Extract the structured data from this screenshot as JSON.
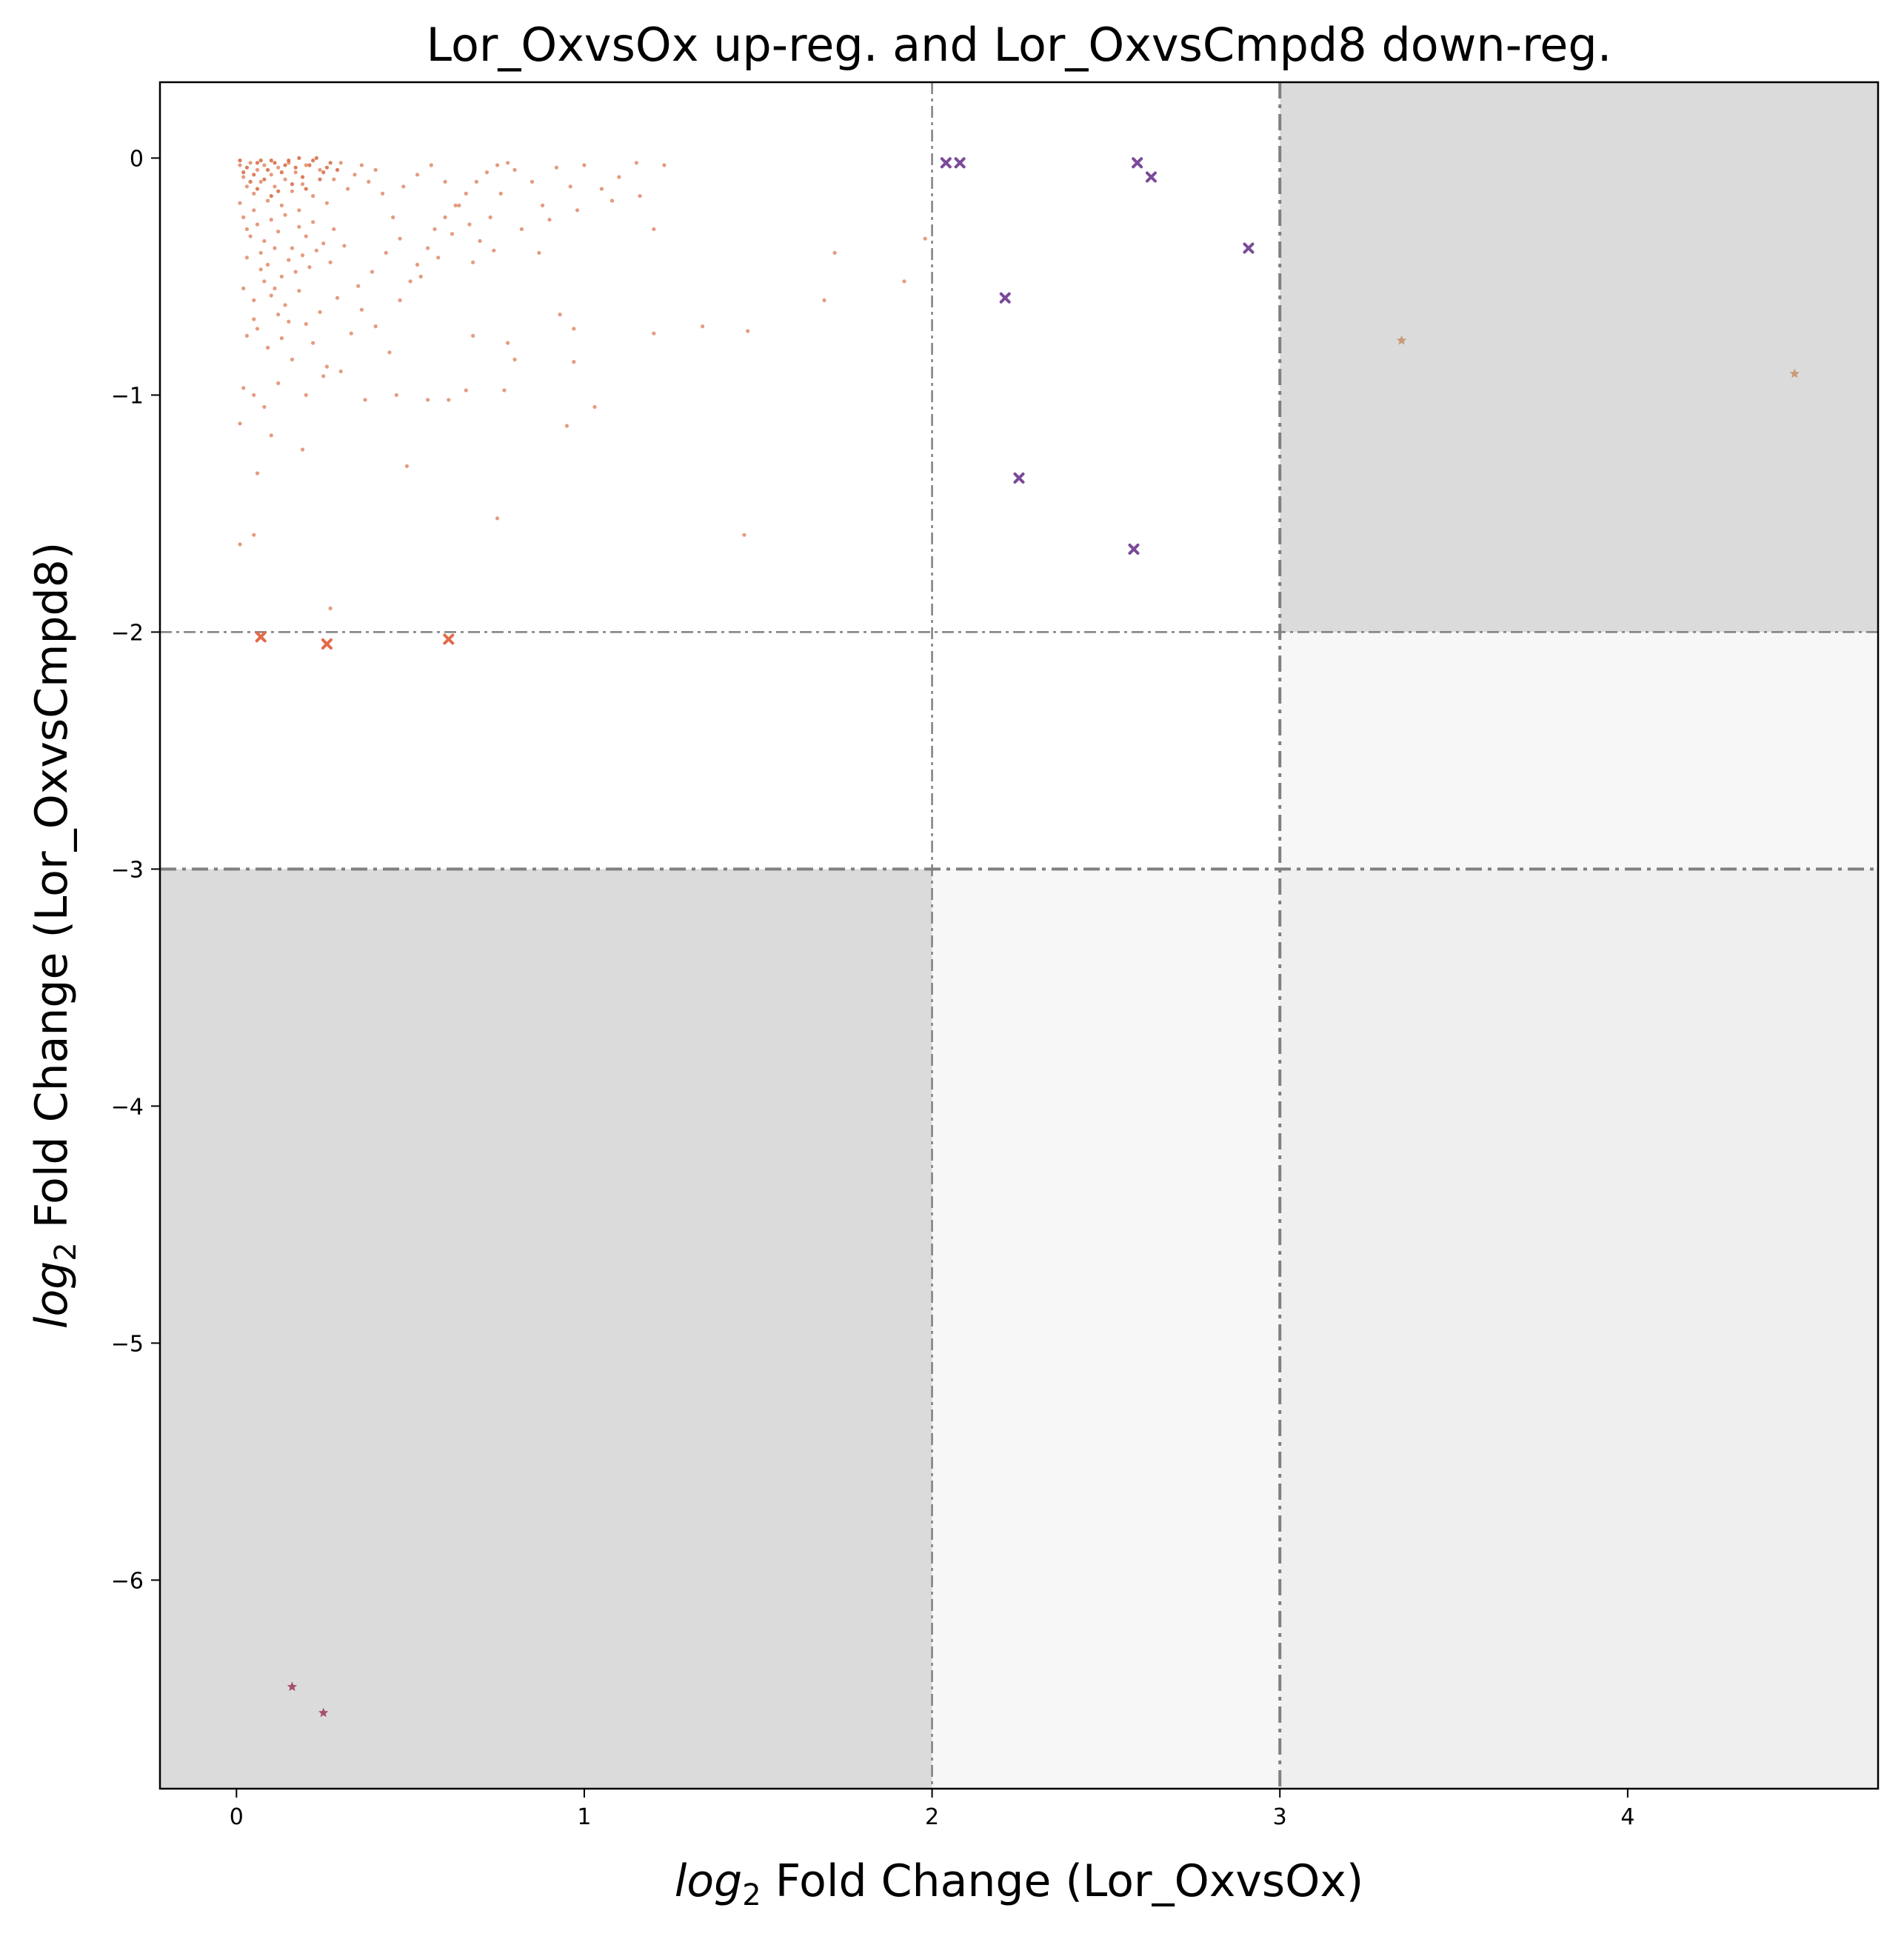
{
  "chart_data": {
    "type": "scatter",
    "title": "Lor_OxvsOx up-reg. and Lor_OxvsCmpd8 down-reg.",
    "xlabel": {
      "prefix": "log",
      "sub": "2",
      "rest": " Fold Change (Lor_OxvsOx)"
    },
    "ylabel": {
      "prefix": "log",
      "sub": "2",
      "rest": " Fold Change (Lor_OxvsCmpd8)"
    },
    "xlim": [
      -0.22,
      4.72
    ],
    "ylim": [
      -6.88,
      0.32
    ],
    "xticks": [
      0,
      1,
      2,
      3,
      4
    ],
    "yticks": [
      0,
      -1,
      -2,
      -3,
      -4,
      -5,
      -6
    ],
    "xtick_labels": [
      "0",
      "1",
      "2",
      "3",
      "4"
    ],
    "ytick_labels": [
      "0",
      "−1",
      "−2",
      "−3",
      "−4",
      "−5",
      "−6"
    ],
    "grid": false,
    "legend": "none",
    "colors": {
      "shade_dark": "#dbdbdb",
      "shade_light": "#f7f7f7",
      "shade_mid": "#efefef",
      "threshold_line": "#808080",
      "dots": "#e08a68",
      "dots_dense": "#d4683f",
      "cross_orange": "#e36a4a",
      "cross_purple": "#7a4a9a",
      "star_tan": "#c89a78",
      "star_rose": "#a8506a"
    },
    "regions": [
      {
        "x": [
          -0.22,
          2
        ],
        "y": [
          -6.88,
          -3
        ],
        "shade": "shade_dark"
      },
      {
        "x": [
          2,
          3
        ],
        "y": [
          -6.88,
          -3
        ],
        "shade": "shade_light"
      },
      {
        "x": [
          3,
          4.72
        ],
        "y": [
          -6.88,
          -3
        ],
        "shade": "shade_mid"
      },
      {
        "x": [
          3,
          4.72
        ],
        "y": [
          -3,
          -2
        ],
        "shade": "shade_light"
      },
      {
        "x": [
          3,
          4.72
        ],
        "y": [
          -2,
          0.32
        ],
        "shade": "shade_dark"
      }
    ],
    "thresholds": {
      "vertical": [
        {
          "x": 2,
          "weight": "thin"
        },
        {
          "x": 3,
          "weight": "thick"
        }
      ],
      "horizontal": [
        {
          "y": -2,
          "weight": "thin"
        },
        {
          "y": -3,
          "weight": "thick"
        }
      ]
    },
    "series": [
      {
        "marker": "dot",
        "color": "dots",
        "points": [
          [
            0.01,
            -0.03
          ],
          [
            0.02,
            -0.08
          ],
          [
            0.03,
            -0.12
          ],
          [
            0.04,
            -0.02
          ],
          [
            0.05,
            -0.15
          ],
          [
            0.06,
            -0.05
          ],
          [
            0.07,
            -0.1
          ],
          [
            0.08,
            -0.03
          ],
          [
            0.09,
            -0.18
          ],
          [
            0.1,
            -0.07
          ],
          [
            0.11,
            -0.12
          ],
          [
            0.12,
            -0.04
          ],
          [
            0.13,
            -0.2
          ],
          [
            0.14,
            -0.09
          ],
          [
            0.15,
            -0.02
          ],
          [
            0.16,
            -0.14
          ],
          [
            0.17,
            -0.06
          ],
          [
            0.18,
            -0.22
          ],
          [
            0.19,
            -0.11
          ],
          [
            0.2,
            -0.03
          ],
          [
            0.22,
            -0.16
          ],
          [
            0.24,
            -0.05
          ],
          [
            0.26,
            -0.19
          ],
          [
            0.28,
            -0.09
          ],
          [
            0.3,
            -0.02
          ],
          [
            0.32,
            -0.13
          ],
          [
            0.34,
            -0.07
          ],
          [
            0.36,
            -0.03
          ],
          [
            0.38,
            -0.1
          ],
          [
            0.4,
            -0.05
          ],
          [
            0.02,
            -0.25
          ],
          [
            0.03,
            -0.3
          ],
          [
            0.05,
            -0.22
          ],
          [
            0.06,
            -0.28
          ],
          [
            0.08,
            -0.35
          ],
          [
            0.1,
            -0.26
          ],
          [
            0.12,
            -0.31
          ],
          [
            0.14,
            -0.24
          ],
          [
            0.16,
            -0.38
          ],
          [
            0.18,
            -0.29
          ],
          [
            0.2,
            -0.33
          ],
          [
            0.22,
            -0.27
          ],
          [
            0.25,
            -0.36
          ],
          [
            0.28,
            -0.3
          ],
          [
            0.01,
            -0.19
          ],
          [
            0.04,
            -0.33
          ],
          [
            0.07,
            -0.4
          ],
          [
            0.09,
            -0.45
          ],
          [
            0.11,
            -0.38
          ],
          [
            0.13,
            -0.5
          ],
          [
            0.15,
            -0.43
          ],
          [
            0.17,
            -0.48
          ],
          [
            0.19,
            -0.41
          ],
          [
            0.21,
            -0.46
          ],
          [
            0.23,
            -0.39
          ],
          [
            0.27,
            -0.44
          ],
          [
            0.31,
            -0.37
          ],
          [
            0.02,
            -0.55
          ],
          [
            0.05,
            -0.6
          ],
          [
            0.08,
            -0.52
          ],
          [
            0.1,
            -0.58
          ],
          [
            0.12,
            -0.66
          ],
          [
            0.14,
            -0.62
          ],
          [
            0.18,
            -0.56
          ],
          [
            0.2,
            -0.7
          ],
          [
            0.24,
            -0.65
          ],
          [
            0.29,
            -0.59
          ],
          [
            0.03,
            -0.75
          ],
          [
            0.06,
            -0.72
          ],
          [
            0.09,
            -0.8
          ],
          [
            0.13,
            -0.76
          ],
          [
            0.16,
            -0.85
          ],
          [
            0.22,
            -0.78
          ],
          [
            0.26,
            -0.88
          ],
          [
            0.33,
            -0.74
          ],
          [
            0.36,
            -0.64
          ],
          [
            0.4,
            -0.71
          ],
          [
            0.44,
            -0.82
          ],
          [
            0.47,
            -0.6
          ],
          [
            0.5,
            -0.52
          ],
          [
            0.52,
            -0.45
          ],
          [
            0.55,
            -0.38
          ],
          [
            0.57,
            -0.3
          ],
          [
            0.6,
            -0.25
          ],
          [
            0.63,
            -0.2
          ],
          [
            0.66,
            -0.15
          ],
          [
            0.69,
            -0.1
          ],
          [
            0.72,
            -0.06
          ],
          [
            0.75,
            -0.03
          ],
          [
            0.78,
            -0.02
          ],
          [
            0.42,
            -0.15
          ],
          [
            0.45,
            -0.25
          ],
          [
            0.48,
            -0.12
          ],
          [
            0.52,
            -0.07
          ],
          [
            0.56,
            -0.03
          ],
          [
            0.6,
            -0.1
          ],
          [
            0.64,
            -0.2
          ],
          [
            0.67,
            -0.28
          ],
          [
            0.7,
            -0.35
          ],
          [
            0.73,
            -0.25
          ],
          [
            0.76,
            -0.15
          ],
          [
            0.8,
            -0.05
          ],
          [
            0.85,
            -0.1
          ],
          [
            0.88,
            -0.2
          ],
          [
            0.92,
            -0.04
          ],
          [
            0.96,
            -0.12
          ],
          [
            1.0,
            -0.03
          ],
          [
            1.08,
            -0.18
          ],
          [
            1.15,
            -0.02
          ],
          [
            1.2,
            -0.3
          ],
          [
            1.23,
            -0.03
          ],
          [
            1.16,
            -0.16
          ],
          [
            0.02,
            -0.97
          ],
          [
            0.05,
            -1.0
          ],
          [
            0.08,
            -1.05
          ],
          [
            0.12,
            -0.95
          ],
          [
            0.2,
            -1.0
          ],
          [
            0.25,
            -0.92
          ],
          [
            0.3,
            -0.9
          ],
          [
            0.37,
            -1.02
          ],
          [
            0.46,
            -1.0
          ],
          [
            0.55,
            -1.02
          ],
          [
            0.61,
            -1.02
          ],
          [
            0.66,
            -0.98
          ],
          [
            0.68,
            -0.75
          ],
          [
            0.77,
            -0.98
          ],
          [
            0.78,
            -0.78
          ],
          [
            0.8,
            -0.85
          ],
          [
            0.93,
            -0.66
          ],
          [
            0.97,
            -0.72
          ],
          [
            0.97,
            -0.86
          ],
          [
            1.03,
            -1.05
          ],
          [
            0.95,
            -1.13
          ],
          [
            1.2,
            -0.74
          ],
          [
            1.34,
            -0.71
          ],
          [
            1.47,
            -0.73
          ],
          [
            1.69,
            -0.6
          ],
          [
            1.72,
            -0.4
          ],
          [
            1.92,
            -0.52
          ],
          [
            1.98,
            -0.34
          ],
          [
            0.01,
            -1.12
          ],
          [
            0.01,
            -1.63
          ],
          [
            0.05,
            -1.59
          ],
          [
            0.06,
            -1.33
          ],
          [
            0.1,
            -1.17
          ],
          [
            0.19,
            -1.23
          ],
          [
            0.49,
            -1.3
          ],
          [
            0.75,
            -1.52
          ],
          [
            1.46,
            -1.59
          ],
          [
            0.27,
            -1.9
          ],
          [
            0.03,
            -0.42
          ],
          [
            0.07,
            -0.47
          ],
          [
            0.11,
            -0.55
          ],
          [
            0.15,
            -0.69
          ],
          [
            0.35,
            -0.54
          ],
          [
            0.39,
            -0.48
          ],
          [
            0.43,
            -0.4
          ],
          [
            0.47,
            -0.34
          ],
          [
            0.53,
            -0.5
          ],
          [
            0.58,
            -0.42
          ],
          [
            0.62,
            -0.32
          ],
          [
            0.68,
            -0.44
          ],
          [
            0.74,
            -0.39
          ],
          [
            0.82,
            -0.3
          ],
          [
            0.87,
            -0.4
          ],
          [
            0.9,
            -0.26
          ],
          [
            0.98,
            -0.22
          ],
          [
            1.05,
            -0.13
          ],
          [
            1.1,
            -0.08
          ],
          [
            0.05,
            -0.68
          ]
        ]
      },
      {
        "marker": "dot",
        "color": "dots_dense",
        "points": [
          [
            0.01,
            -0.01
          ],
          [
            0.03,
            -0.04
          ],
          [
            0.05,
            -0.07
          ],
          [
            0.07,
            -0.01
          ],
          [
            0.09,
            -0.05
          ],
          [
            0.11,
            -0.02
          ],
          [
            0.13,
            -0.06
          ],
          [
            0.15,
            -0.01
          ],
          [
            0.17,
            -0.04
          ],
          [
            0.19,
            -0.08
          ],
          [
            0.21,
            -0.03
          ],
          [
            0.23,
            -0.0
          ],
          [
            0.25,
            -0.06
          ],
          [
            0.27,
            -0.02
          ],
          [
            0.29,
            -0.05
          ],
          [
            0.04,
            -0.1
          ],
          [
            0.06,
            -0.13
          ],
          [
            0.08,
            -0.09
          ],
          [
            0.12,
            -0.14
          ],
          [
            0.16,
            -0.11
          ],
          [
            0.2,
            -0.13
          ],
          [
            0.24,
            -0.09
          ],
          [
            0.1,
            -0.01
          ],
          [
            0.14,
            -0.03
          ],
          [
            0.18,
            -0.0
          ],
          [
            0.22,
            -0.01
          ],
          [
            0.26,
            -0.04
          ],
          [
            0.02,
            -0.06
          ],
          [
            0.06,
            -0.02
          ],
          [
            0.1,
            -0.16
          ]
        ]
      },
      {
        "marker": "cross",
        "color": "cross_orange",
        "points": [
          [
            0.07,
            -2.02
          ],
          [
            0.26,
            -2.05
          ],
          [
            0.61,
            -2.03
          ]
        ]
      },
      {
        "marker": "cross",
        "color": "cross_purple",
        "points": [
          [
            2.04,
            -0.02
          ],
          [
            2.08,
            -0.02
          ],
          [
            2.59,
            -0.02
          ],
          [
            2.63,
            -0.08
          ],
          [
            2.91,
            -0.38
          ],
          [
            2.21,
            -0.59
          ],
          [
            2.25,
            -1.35
          ],
          [
            2.58,
            -1.65
          ]
        ]
      },
      {
        "marker": "star",
        "color": "star_tan",
        "points": [
          [
            3.35,
            -0.77
          ],
          [
            4.48,
            -0.91
          ]
        ]
      },
      {
        "marker": "star",
        "color": "star_rose",
        "points": [
          [
            0.16,
            -6.45
          ],
          [
            0.25,
            -6.56
          ]
        ]
      }
    ]
  }
}
